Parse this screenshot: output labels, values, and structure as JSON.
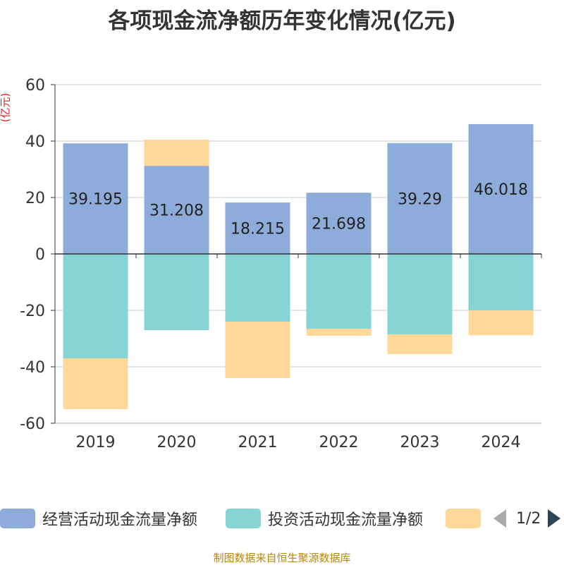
{
  "title": "各项现金流净额历年变化情况(亿元)",
  "source": "制图数据来自恒生聚源数据库",
  "legend": {
    "items": [
      {
        "label": "经营活动现金流量净额",
        "color": "#8eacd9"
      },
      {
        "label": "投资活动现金流量净额",
        "color": "#86d4d6"
      },
      {
        "label": "",
        "color": "#fed898"
      }
    ],
    "page": "1/2"
  },
  "chart_data": {
    "type": "bar",
    "stacked": true,
    "title": "各项现金流净额历年变化情况(亿元)",
    "ylabel": "(亿元)",
    "xlabel": "",
    "ylim": [
      -60,
      60
    ],
    "yticks": [
      60,
      40,
      20,
      0,
      -20,
      -40,
      -60
    ],
    "categories": [
      "2019",
      "2020",
      "2021",
      "2022",
      "2023",
      "2024"
    ],
    "series": [
      {
        "name": "经营活动现金流量净额",
        "color": "#8eacd9",
        "values": [
          39.195,
          31.208,
          18.215,
          21.698,
          39.29,
          46.018
        ],
        "labels": [
          "39.195",
          "31.208",
          "18.215",
          "21.698",
          "39.29",
          "46.018"
        ]
      },
      {
        "name": "投资活动现金流量净额",
        "color": "#86d4d6",
        "values": [
          -37,
          -27,
          -24,
          -26.5,
          -28.5,
          -20
        ]
      },
      {
        "name": "",
        "color": "#fed898",
        "values": [
          -18,
          9.3,
          -20,
          -2.5,
          -7,
          -8.8
        ]
      }
    ],
    "grid": true,
    "legend": "bottom"
  }
}
